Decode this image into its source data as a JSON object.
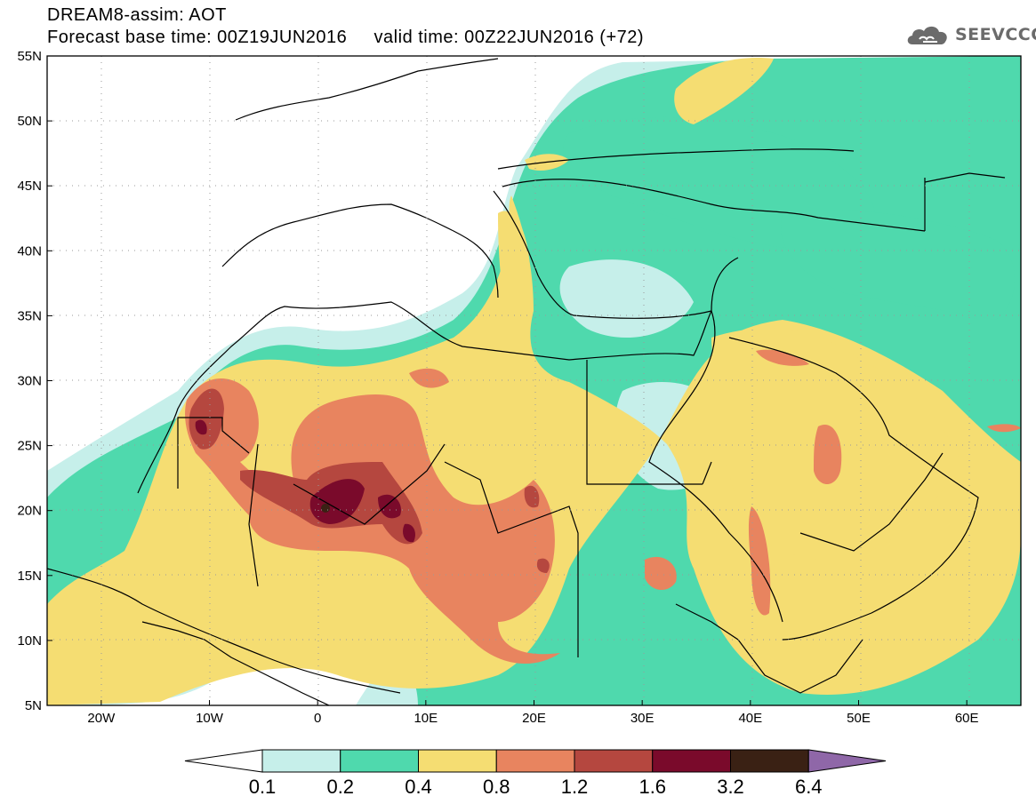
{
  "header": {
    "title_line1": "DREAM8-assim: AOT",
    "title_line2": "Forecast base time: 00Z19JUN2016     valid time: 00Z22JUN2016 (+72)"
  },
  "logo": {
    "text": "SEEVCCC",
    "icon": "cloud-icon"
  },
  "map": {
    "variable": "AOT",
    "lon_range": [
      -25,
      65
    ],
    "lat_range": [
      5,
      55
    ],
    "lat_ticks": [
      {
        "value": 55,
        "label": "55N"
      },
      {
        "value": 50,
        "label": "50N"
      },
      {
        "value": 45,
        "label": "45N"
      },
      {
        "value": 40,
        "label": "40N"
      },
      {
        "value": 35,
        "label": "35N"
      },
      {
        "value": 30,
        "label": "30N"
      },
      {
        "value": 25,
        "label": "25N"
      },
      {
        "value": 20,
        "label": "20N"
      },
      {
        "value": 15,
        "label": "15N"
      },
      {
        "value": 10,
        "label": "10N"
      },
      {
        "value": 5,
        "label": "5N"
      }
    ],
    "lon_ticks": [
      {
        "value": -20,
        "label": "20W"
      },
      {
        "value": -10,
        "label": "10W"
      },
      {
        "value": 0,
        "label": "0"
      },
      {
        "value": 10,
        "label": "10E"
      },
      {
        "value": 20,
        "label": "20E"
      },
      {
        "value": 30,
        "label": "30E"
      },
      {
        "value": 40,
        "label": "40E"
      },
      {
        "value": 50,
        "label": "50E"
      },
      {
        "value": 60,
        "label": "60E"
      }
    ]
  },
  "colorbar": {
    "labels": [
      "0.1",
      "0.2",
      "0.4",
      "0.8",
      "1.2",
      "1.6",
      "3.2",
      "6.4"
    ],
    "colors": [
      "#ffffff",
      "#c6efea",
      "#4fd9ad",
      "#f5dd72",
      "#e8845f",
      "#b5473f",
      "#7a0a2b",
      "#3a2114",
      "#8f67a8"
    ],
    "bins": [
      {
        "from": null,
        "to": 0.1,
        "color": "#ffffff"
      },
      {
        "from": 0.1,
        "to": 0.2,
        "color": "#c6efea"
      },
      {
        "from": 0.2,
        "to": 0.4,
        "color": "#4fd9ad"
      },
      {
        "from": 0.4,
        "to": 0.8,
        "color": "#f5dd72"
      },
      {
        "from": 0.8,
        "to": 1.2,
        "color": "#e8845f"
      },
      {
        "from": 1.2,
        "to": 1.6,
        "color": "#b5473f"
      },
      {
        "from": 1.6,
        "to": 3.2,
        "color": "#7a0a2b"
      },
      {
        "from": 3.2,
        "to": 6.4,
        "color": "#3a2114"
      },
      {
        "from": 6.4,
        "to": null,
        "color": "#8f67a8"
      }
    ]
  }
}
